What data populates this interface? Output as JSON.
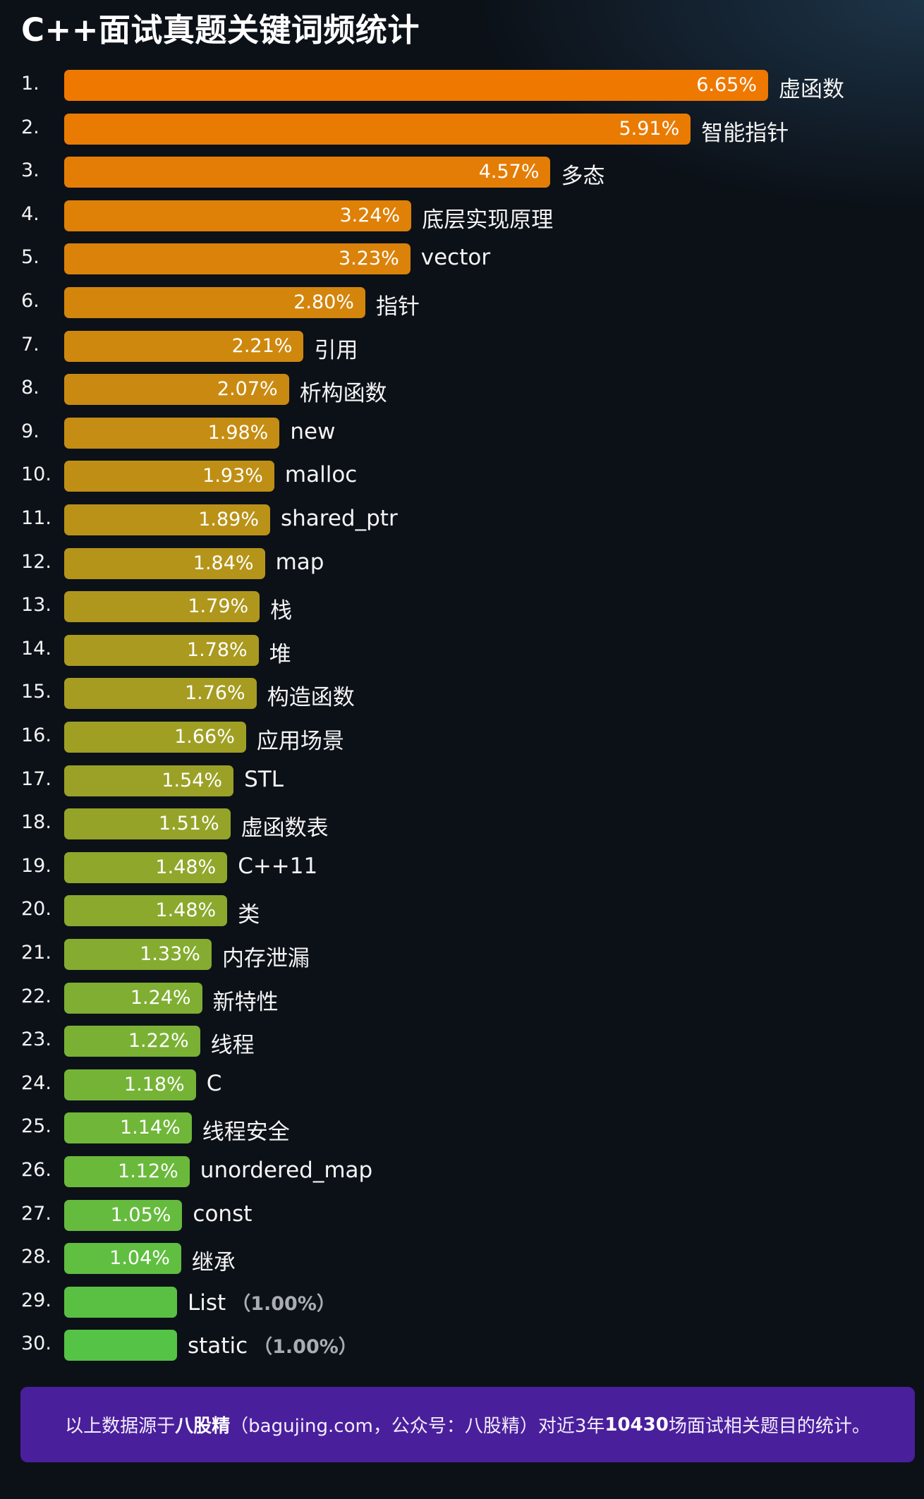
{
  "title": "C++面试真题关键词频统计",
  "chart_data": {
    "type": "bar",
    "orientation": "horizontal",
    "title": "C++面试真题关键词频统计",
    "unit": "%",
    "xlim": [
      0,
      6.65
    ],
    "grid": false,
    "colors": {
      "start": "#ef7800",
      "end": "#55c345"
    },
    "categories": [
      "虚函数",
      "智能指针",
      "多态",
      "底层实现原理",
      "vector",
      "指针",
      "引用",
      "析构函数",
      "new",
      "malloc",
      "shared_ptr",
      "map",
      "栈",
      "堆",
      "构造函数",
      "应用场景",
      "STL",
      "虚函数表",
      "C++11",
      "类",
      "内存泄漏",
      "新特性",
      "线程",
      "C",
      "线程安全",
      "unordered_map",
      "const",
      "继承",
      "List",
      "static"
    ],
    "values": [
      6.65,
      5.91,
      4.57,
      3.24,
      3.23,
      2.8,
      2.21,
      2.07,
      1.98,
      1.93,
      1.89,
      1.84,
      1.79,
      1.78,
      1.76,
      1.66,
      1.54,
      1.51,
      1.48,
      1.48,
      1.33,
      1.24,
      1.22,
      1.18,
      1.14,
      1.12,
      1.05,
      1.04,
      1.0,
      1.0
    ],
    "value_labels": [
      "6.65%",
      "5.91%",
      "4.57%",
      "3.24%",
      "3.23%",
      "2.80%",
      "2.21%",
      "2.07%",
      "1.98%",
      "1.93%",
      "1.89%",
      "1.84%",
      "1.79%",
      "1.78%",
      "1.76%",
      "1.66%",
      "1.54%",
      "1.51%",
      "1.48%",
      "1.48%",
      "1.33%",
      "1.24%",
      "1.22%",
      "1.18%",
      "1.14%",
      "1.12%",
      "1.05%",
      "1.04%",
      "（1.00%）",
      "（1.00%）"
    ],
    "ranks": [
      "1.",
      "2.",
      "3.",
      "4.",
      "5.",
      "6.",
      "7.",
      "8.",
      "9.",
      "10.",
      "11.",
      "12.",
      "13.",
      "14.",
      "15.",
      "16.",
      "17.",
      "18.",
      "19.",
      "20.",
      "21.",
      "22.",
      "23.",
      "24.",
      "25.",
      "26.",
      "27.",
      "28.",
      "29.",
      "30."
    ]
  },
  "footer": {
    "prefix": "以上数据源于",
    "brand": "八股精",
    "middle": "（bagujing.com，公众号：八股精）对近3年",
    "count": "10430",
    "suffix": "场面试相关题目的统计。"
  }
}
